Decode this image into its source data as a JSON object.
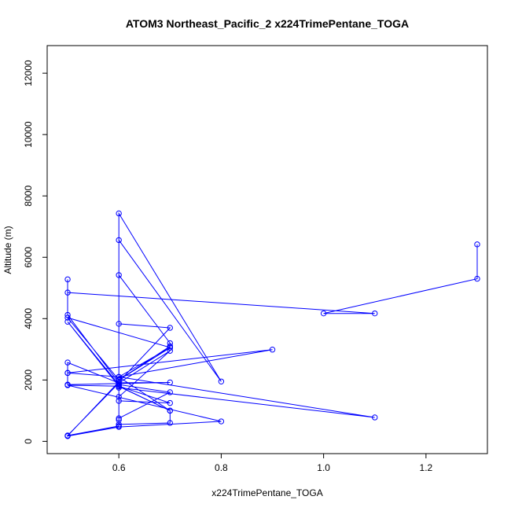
{
  "chart_data": {
    "type": "line",
    "title": "ATOM3 Northeast_Pacific_2 x224TrimePentane_TOGA",
    "xlabel": "x224TrimePentane_TOGA",
    "ylabel": "Altitude (m)",
    "xlim": [
      0.46,
      1.32
    ],
    "ylim": [
      -400,
      12900
    ],
    "x_ticks": [
      "0.6",
      "0.8",
      "1.0",
      "1.2"
    ],
    "y_ticks": [
      "0",
      "2000",
      "4000",
      "6000",
      "8000",
      "10000",
      "12000"
    ],
    "grid": false,
    "legend": "none",
    "marker": "open-circle",
    "series": [
      {
        "color": "#0000ff",
        "x": [
          1.3,
          1.3,
          1.0,
          1.1,
          0.5,
          0.5,
          0.5,
          0.6,
          0.7,
          0.5,
          0.5,
          0.5,
          0.6,
          0.6,
          0.7,
          0.7,
          0.6,
          0.6,
          0.6,
          0.6,
          0.7,
          0.7,
          0.6,
          0.6,
          0.5,
          0.6,
          0.7,
          0.6,
          0.6,
          0.7,
          0.6,
          0.5,
          0.6,
          0.6,
          0.6,
          0.7,
          0.6,
          0.6,
          0.8,
          0.6,
          0.6,
          0.7,
          0.5,
          0.5,
          0.6,
          0.8,
          0.5,
          0.6,
          0.7,
          0.6,
          0.6,
          1.1,
          0.6,
          0.9,
          0.5,
          0.6,
          0.7,
          0.5,
          0.6,
          0.7
        ],
        "y": [
          6420,
          5300,
          4170,
          4170,
          4850,
          5280,
          4120,
          1910,
          1920,
          1850,
          2230,
          2570,
          1900,
          2000,
          3050,
          3200,
          5420,
          2100,
          1800,
          1790,
          1000,
          600,
          550,
          1850,
          3900,
          1800,
          1250,
          1320,
          1450,
          2950,
          1900,
          190,
          500,
          700,
          750,
          1600,
          1850,
          7430,
          1950,
          6560,
          3830,
          3700,
          180,
          170,
          470,
          650,
          1830,
          1800,
          1000,
          2100,
          1750,
          780,
          2100,
          2990,
          2230,
          2100,
          3060,
          4030,
          2000,
          3100
        ]
      }
    ]
  }
}
